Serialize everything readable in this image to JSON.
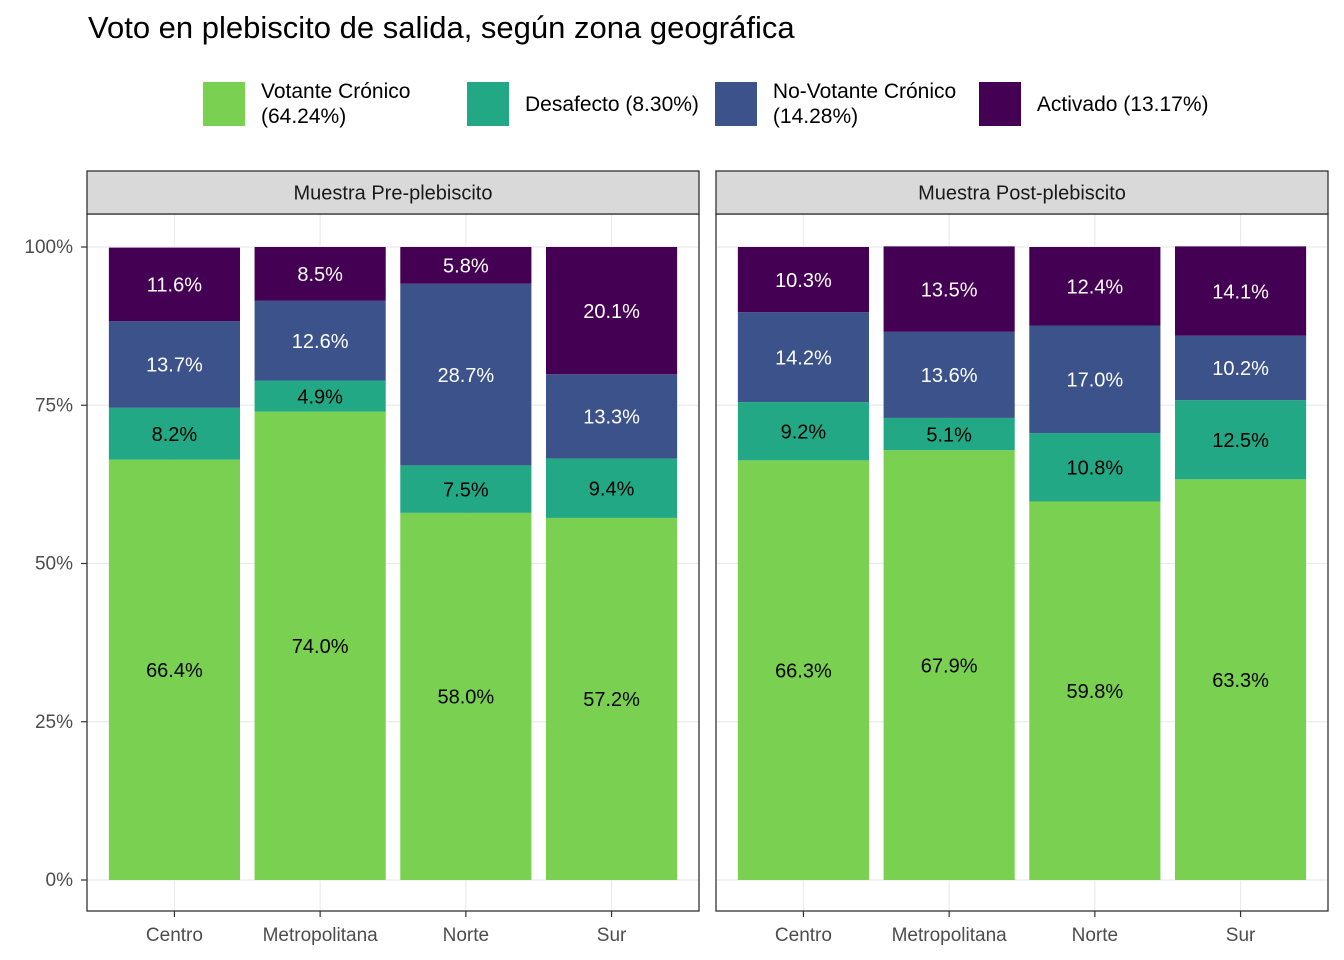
{
  "chart_data": {
    "type": "bar",
    "stacked": true,
    "title": "Voto en plebiscito de salida, según zona geográfica",
    "legend_position": "top",
    "grid": true,
    "categories": [
      "Centro",
      "Metropolitana",
      "Norte",
      "Sur"
    ],
    "ylim": [
      0,
      100
    ],
    "yticks": [
      {
        "value": 0,
        "label": "0%"
      },
      {
        "value": 25,
        "label": "25%"
      },
      {
        "value": 50,
        "label": "50%"
      },
      {
        "value": 75,
        "label": "75%"
      },
      {
        "value": 100,
        "label": "100%"
      }
    ],
    "series": [
      {
        "name": "Votante Crónico (64.24%)",
        "color": "#7ad151",
        "label_color": "#000000"
      },
      {
        "name": "Desafecto (8.30%)",
        "color": "#22a884",
        "label_color": "#000000"
      },
      {
        "name": "No-Votante Crónico (14.28%)",
        "color": "#3b528b",
        "label_color": "#ffffff"
      },
      {
        "name": "Activado (13.17%)",
        "color": "#440154",
        "label_color": "#ffffff"
      }
    ],
    "facets": [
      {
        "title": "Muestra Pre-plebiscito",
        "series": [
          {
            "values": [
              66.4,
              74,
              58,
              57.2
            ],
            "value_labels": [
              "66.4%",
              "74.0%",
              "58.0%",
              "57.2%"
            ]
          },
          {
            "values": [
              8.2,
              4.9,
              7.5,
              9.4
            ],
            "value_labels": [
              "8.2%",
              "4.9%",
              "7.5%",
              "9.4%"
            ]
          },
          {
            "values": [
              13.7,
              12.6,
              28.7,
              13.3
            ],
            "value_labels": [
              "13.7%",
              "12.6%",
              "28.7%",
              "13.3%"
            ]
          },
          {
            "values": [
              11.6,
              8.5,
              5.8,
              20.1
            ],
            "value_labels": [
              "11.6%",
              "8.5%",
              "5.8%",
              "20.1%"
            ]
          }
        ]
      },
      {
        "title": "Muestra Post-plebiscito",
        "series": [
          {
            "values": [
              66.3,
              67.9,
              59.8,
              63.3
            ],
            "value_labels": [
              "66.3%",
              "67.9%",
              "59.8%",
              "63.3%"
            ]
          },
          {
            "values": [
              9.2,
              5.1,
              10.8,
              12.5
            ],
            "value_labels": [
              "9.2%",
              "5.1%",
              "10.8%",
              "12.5%"
            ]
          },
          {
            "values": [
              14.2,
              13.6,
              17,
              10.2
            ],
            "value_labels": [
              "14.2%",
              "13.6%",
              "17.0%",
              "10.2%"
            ]
          },
          {
            "values": [
              10.3,
              13.5,
              12.4,
              14.1
            ],
            "value_labels": [
              "10.3%",
              "13.5%",
              "12.4%",
              "14.1%"
            ]
          }
        ]
      }
    ]
  }
}
